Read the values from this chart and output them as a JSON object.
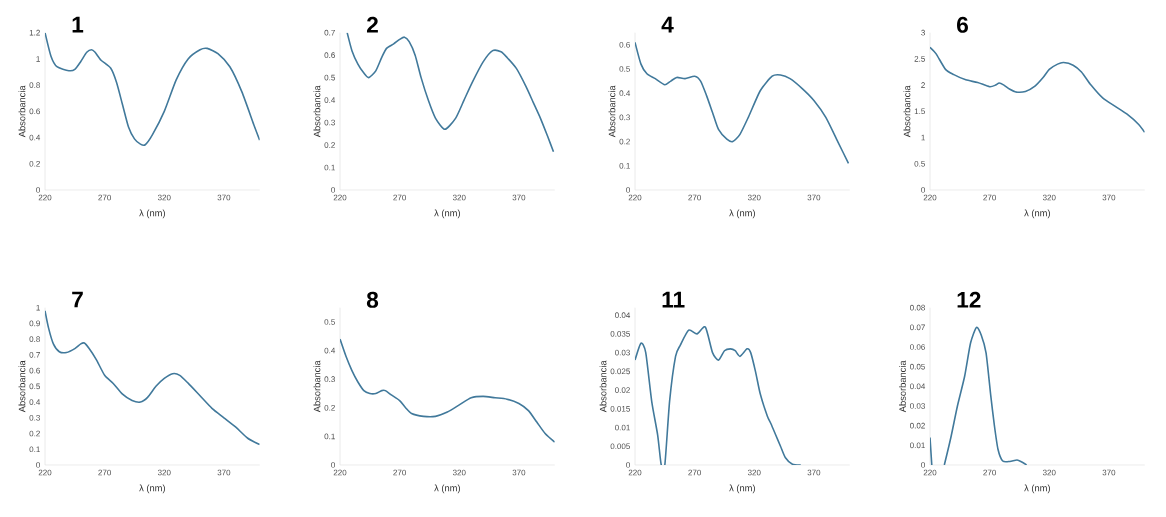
{
  "chart_data": [
    {
      "type": "line",
      "title": "1",
      "xlabel": "λ (nm)",
      "ylabel": "Absorbancia",
      "color": "#41799b",
      "xlim": [
        220,
        400
      ],
      "ylim": [
        0,
        1.2
      ],
      "xticks": [
        220,
        270,
        320,
        370
      ],
      "yticks": [
        0,
        0.2,
        0.4,
        0.6,
        0.8,
        1,
        1.2
      ],
      "x": [
        220,
        225,
        230,
        240,
        245,
        250,
        255,
        259,
        262,
        267,
        275,
        280,
        285,
        290,
        295,
        300,
        304,
        310,
        320,
        330,
        340,
        350,
        356,
        365,
        375,
        385,
        395,
        400
      ],
      "values": [
        1.2,
        1.02,
        0.94,
        0.91,
        0.92,
        0.98,
        1.05,
        1.07,
        1.05,
        0.99,
        0.93,
        0.82,
        0.65,
        0.48,
        0.39,
        0.35,
        0.345,
        0.42,
        0.6,
        0.84,
        1.0,
        1.07,
        1.08,
        1.04,
        0.94,
        0.75,
        0.5,
        0.38
      ]
    },
    {
      "type": "line",
      "title": "2",
      "xlabel": "λ (nm)",
      "ylabel": "Absorbancia",
      "color": "#41799b",
      "xlim": [
        220,
        400
      ],
      "ylim": [
        0,
        0.7
      ],
      "xticks": [
        220,
        270,
        320,
        370
      ],
      "yticks": [
        0,
        0.1,
        0.2,
        0.3,
        0.4,
        0.5,
        0.6,
        0.7
      ],
      "x": [
        226,
        230,
        235,
        240,
        244,
        250,
        255,
        259,
        265,
        270,
        274,
        278,
        283,
        288,
        294,
        300,
        308,
        317,
        324,
        331,
        340,
        348,
        355,
        360,
        368,
        376,
        382,
        388,
        394,
        399
      ],
      "values": [
        0.7,
        0.62,
        0.56,
        0.52,
        0.5,
        0.53,
        0.59,
        0.63,
        0.65,
        0.67,
        0.68,
        0.66,
        0.6,
        0.5,
        0.4,
        0.32,
        0.27,
        0.32,
        0.4,
        0.48,
        0.57,
        0.62,
        0.615,
        0.59,
        0.54,
        0.46,
        0.39,
        0.32,
        0.24,
        0.17
      ]
    },
    {
      "type": "line",
      "title": "4",
      "xlabel": "λ (nm)",
      "ylabel": "Absorbancia",
      "color": "#41799b",
      "xlim": [
        220,
        400
      ],
      "ylim": [
        0,
        0.65
      ],
      "xticks": [
        220,
        270,
        320,
        370
      ],
      "yticks": [
        0,
        0.1,
        0.2,
        0.3,
        0.4,
        0.5,
        0.6
      ],
      "x": [
        220,
        225,
        230,
        237,
        245,
        250,
        255,
        262,
        270,
        275,
        280,
        285,
        290,
        297,
        302,
        308,
        315,
        325,
        335,
        342,
        350,
        360,
        370,
        380,
        390,
        399
      ],
      "values": [
        0.61,
        0.52,
        0.48,
        0.46,
        0.435,
        0.45,
        0.465,
        0.46,
        0.47,
        0.45,
        0.39,
        0.32,
        0.25,
        0.21,
        0.2,
        0.23,
        0.3,
        0.41,
        0.47,
        0.475,
        0.46,
        0.42,
        0.37,
        0.3,
        0.2,
        0.11
      ]
    },
    {
      "type": "line",
      "title": "6",
      "xlabel": "λ (nm)",
      "ylabel": "Absorbancia",
      "color": "#41799b",
      "xlim": [
        220,
        400
      ],
      "ylim": [
        0,
        3
      ],
      "xticks": [
        220,
        270,
        320,
        370
      ],
      "yticks": [
        0,
        0.5,
        1,
        1.5,
        2,
        2.5,
        3
      ],
      "x": [
        220,
        225,
        233,
        240,
        250,
        260,
        270,
        275,
        278,
        282,
        287,
        292,
        300,
        308,
        315,
        320,
        327,
        332,
        340,
        347,
        355,
        365,
        375,
        385,
        395,
        400
      ],
      "values": [
        2.72,
        2.6,
        2.3,
        2.2,
        2.1,
        2.05,
        1.97,
        2.0,
        2.04,
        2.0,
        1.92,
        1.87,
        1.88,
        1.98,
        2.15,
        2.3,
        2.4,
        2.43,
        2.38,
        2.25,
        2.0,
        1.75,
        1.6,
        1.45,
        1.25,
        1.1
      ]
    },
    {
      "type": "line",
      "title": "7",
      "xlabel": "λ (nm)",
      "ylabel": "Absorbancia",
      "color": "#41799b",
      "xlim": [
        220,
        400
      ],
      "ylim": [
        0,
        1
      ],
      "xticks": [
        220,
        270,
        320,
        370
      ],
      "yticks": [
        0,
        0.1,
        0.2,
        0.3,
        0.4,
        0.5,
        0.6,
        0.7,
        0.8,
        0.9,
        1
      ],
      "x": [
        220,
        223,
        227,
        232,
        238,
        245,
        250,
        253,
        257,
        263,
        270,
        277,
        285,
        293,
        300,
        306,
        313,
        320,
        327,
        333,
        340,
        350,
        360,
        370,
        380,
        390,
        400
      ],
      "values": [
        0.98,
        0.87,
        0.77,
        0.72,
        0.715,
        0.74,
        0.77,
        0.775,
        0.74,
        0.67,
        0.57,
        0.52,
        0.45,
        0.41,
        0.4,
        0.43,
        0.5,
        0.55,
        0.58,
        0.57,
        0.52,
        0.44,
        0.36,
        0.3,
        0.24,
        0.17,
        0.13
      ]
    },
    {
      "type": "line",
      "title": "8",
      "xlabel": "λ (nm)",
      "ylabel": "Absorbancia",
      "color": "#41799b",
      "xlim": [
        220,
        400
      ],
      "ylim": [
        0,
        0.55
      ],
      "xticks": [
        220,
        270,
        320,
        370
      ],
      "yticks": [
        0,
        0.1,
        0.2,
        0.3,
        0.4,
        0.5
      ],
      "x": [
        220,
        225,
        230,
        235,
        240,
        245,
        250,
        255,
        258,
        263,
        270,
        275,
        280,
        290,
        300,
        310,
        320,
        330,
        340,
        350,
        360,
        370,
        378,
        385,
        392,
        400
      ],
      "values": [
        0.44,
        0.38,
        0.33,
        0.29,
        0.26,
        0.25,
        0.25,
        0.26,
        0.26,
        0.245,
        0.225,
        0.2,
        0.18,
        0.17,
        0.17,
        0.185,
        0.21,
        0.235,
        0.24,
        0.235,
        0.23,
        0.215,
        0.19,
        0.15,
        0.11,
        0.08
      ]
    },
    {
      "type": "line",
      "title": "11",
      "xlabel": "λ (nm)",
      "ylabel": "Absorbancia",
      "color": "#41799b",
      "xlim": [
        220,
        400
      ],
      "ylim": [
        0,
        0.042
      ],
      "xticks": [
        220,
        270,
        320,
        370
      ],
      "yticks": [
        0,
        0.005,
        0.01,
        0.015,
        0.02,
        0.025,
        0.03,
        0.035,
        0.04
      ],
      "x": [
        220,
        225,
        229,
        234,
        239,
        242,
        245,
        249,
        254,
        258,
        265,
        272,
        279,
        285,
        290,
        295,
        300,
        304,
        308,
        314,
        317,
        321,
        325,
        331,
        334,
        338,
        342,
        346,
        352,
        359
      ],
      "values": [
        0.028,
        0.0325,
        0.03,
        0.017,
        0.008,
        0,
        0,
        0.017,
        0.029,
        0.032,
        0.036,
        0.035,
        0.0368,
        0.03,
        0.028,
        0.0305,
        0.031,
        0.0305,
        0.029,
        0.031,
        0.03,
        0.025,
        0.019,
        0.013,
        0.011,
        0.008,
        0.005,
        0.002,
        0.0002,
        0
      ]
    },
    {
      "type": "line",
      "title": "12",
      "xlabel": "λ (nm)",
      "ylabel": "Absorbancia",
      "color": "#41799b",
      "xlim": [
        220,
        400
      ],
      "ylim": [
        0,
        0.08
      ],
      "xticks": [
        220,
        270,
        320,
        370
      ],
      "yticks": [
        0,
        0.01,
        0.02,
        0.03,
        0.04,
        0.05,
        0.06,
        0.07,
        0.08
      ],
      "x": [
        220,
        221.5,
        226,
        232,
        237.5,
        243,
        249,
        254,
        259,
        263,
        267,
        271,
        274,
        277,
        281,
        287,
        293,
        297,
        301
      ],
      "values": [
        0.014,
        0,
        null,
        0,
        0.014,
        0.03,
        0.045,
        0.062,
        0.07,
        0.066,
        0.057,
        0.035,
        0.02,
        0.008,
        0.002,
        0.0018,
        0.0025,
        0.0015,
        0
      ]
    }
  ]
}
